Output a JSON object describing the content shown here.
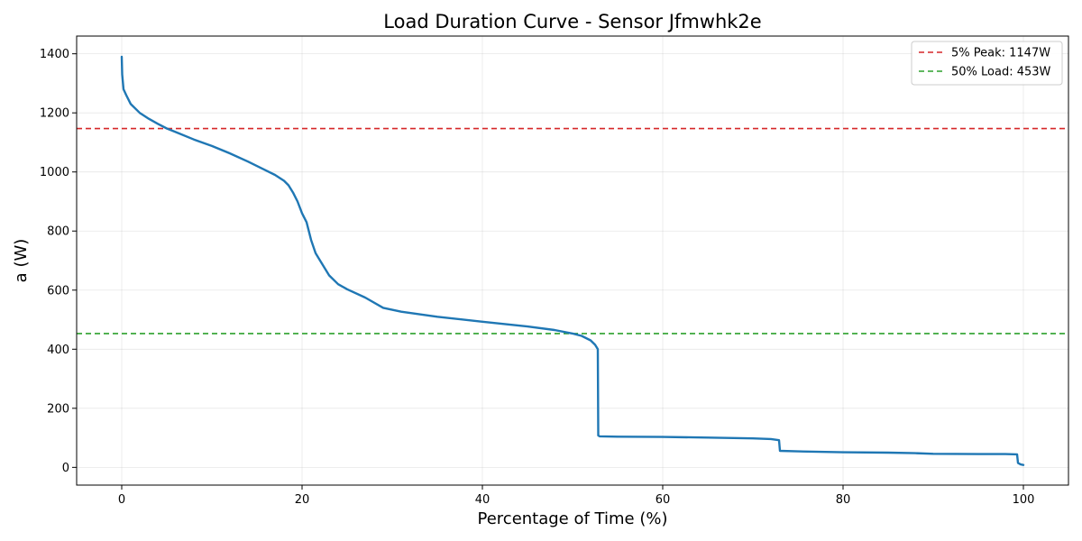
{
  "chart_data": {
    "type": "line",
    "title": "Load Duration Curve - Sensor Jfmwhk2e",
    "xlabel": "Percentage of Time (%)",
    "ylabel": "a (W)",
    "xlim": [
      -5,
      105
    ],
    "ylim": [
      -60,
      1460
    ],
    "xticks": [
      0,
      20,
      40,
      60,
      80,
      100
    ],
    "yticks": [
      0,
      200,
      400,
      600,
      800,
      1000,
      1200,
      1400
    ],
    "grid": true,
    "legend_position": "top-right",
    "series": [
      {
        "color": "#1f77b4",
        "x": [
          0,
          0.05,
          0.2,
          0.5,
          1,
          2,
          3,
          4,
          5,
          6,
          8,
          10,
          12,
          14,
          16,
          17,
          18,
          18.5,
          19,
          19.5,
          20,
          20.5,
          21,
          21.5,
          22,
          23,
          24,
          25,
          27,
          29,
          31,
          35,
          40,
          45,
          48,
          50,
          51,
          52,
          52.5,
          52.8,
          52.85,
          53,
          55,
          60,
          65,
          70,
          72,
          72.9,
          73,
          75,
          80,
          85,
          88,
          90,
          95,
          98,
          99.3,
          99.4,
          99.7,
          100
        ],
        "y": [
          1390,
          1330,
          1280,
          1260,
          1230,
          1200,
          1180,
          1163,
          1147,
          1135,
          1110,
          1088,
          1063,
          1035,
          1005,
          990,
          970,
          955,
          930,
          900,
          860,
          830,
          770,
          725,
          700,
          650,
          620,
          603,
          575,
          540,
          527,
          510,
          493,
          477,
          465,
          453,
          445,
          430,
          415,
          400,
          108,
          105,
          104,
          103,
          101,
          98,
          96,
          92,
          56,
          54,
          51,
          50,
          48,
          46,
          45,
          45,
          44,
          15,
          10,
          8
        ]
      }
    ],
    "reference_lines": [
      {
        "label": "5% Peak: 1147W",
        "value": 1147,
        "color": "#d62728"
      },
      {
        "label": "50% Load: 453W",
        "value": 453,
        "color": "#2ca02c"
      }
    ]
  }
}
